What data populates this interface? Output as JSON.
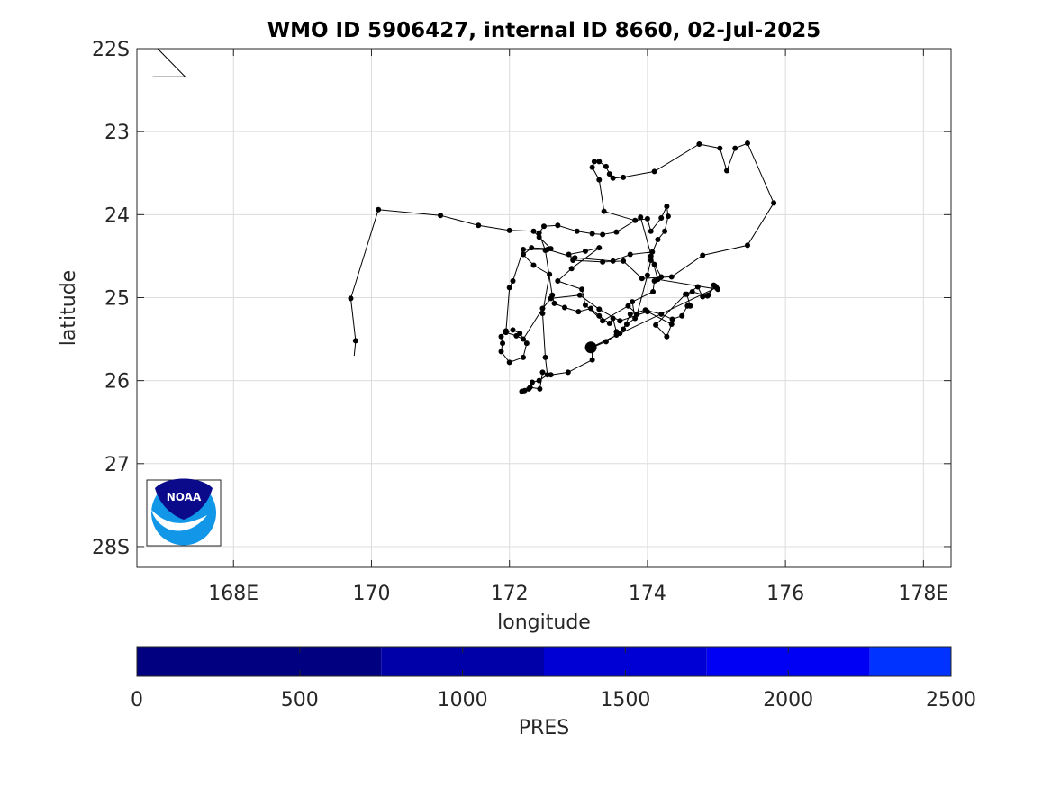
{
  "chart_data": {
    "type": "scatter",
    "title": "WMO ID 5906427, internal ID 8660, 02-Jul-2025",
    "xlabel": "longitude",
    "ylabel": "latitude",
    "xlim": [
      166.6,
      178.4
    ],
    "ylim": [
      22.0,
      28.25
    ],
    "y_axis": "latitude increasing southward (top to bottom)",
    "grid": true,
    "x_ticks": [
      {
        "value": 168,
        "label": "168E"
      },
      {
        "value": 170,
        "label": "170"
      },
      {
        "value": 172,
        "label": "172"
      },
      {
        "value": 174,
        "label": "174"
      },
      {
        "value": 176,
        "label": "176"
      },
      {
        "value": 178,
        "label": "178E"
      }
    ],
    "y_ticks": [
      {
        "value": 22,
        "label": "22S"
      },
      {
        "value": 23,
        "label": "23"
      },
      {
        "value": 24,
        "label": "24"
      },
      {
        "value": 25,
        "label": "25"
      },
      {
        "value": 26,
        "label": "26"
      },
      {
        "value": 27,
        "label": "27"
      },
      {
        "value": 28,
        "label": "28S"
      }
    ],
    "series": [
      {
        "marker": "dot",
        "color": "#000000",
        "points": [
          [
            169.75,
            25.7
          ],
          [
            169.77,
            25.52
          ],
          [
            169.7,
            25.01
          ],
          [
            170.1,
            23.94
          ],
          [
            171.0,
            24.01
          ],
          [
            171.55,
            24.13
          ],
          [
            172.0,
            24.19
          ],
          [
            172.35,
            24.2
          ],
          [
            172.43,
            24.27
          ],
          [
            172.6,
            24.41
          ],
          [
            172.32,
            24.4
          ],
          [
            172.2,
            24.48
          ],
          [
            172.35,
            24.61
          ],
          [
            172.58,
            24.72
          ],
          [
            172.48,
            25.19
          ],
          [
            172.52,
            25.72
          ],
          [
            172.55,
            25.93
          ],
          [
            172.43,
            26.0
          ],
          [
            172.33,
            26.02
          ],
          [
            172.28,
            26.1
          ],
          [
            172.22,
            26.12
          ],
          [
            172.18,
            26.13
          ],
          [
            172.3,
            26.08
          ],
          [
            172.44,
            26.1
          ],
          [
            172.48,
            25.9
          ],
          [
            172.6,
            25.93
          ],
          [
            172.85,
            25.9
          ],
          [
            173.2,
            25.75
          ],
          [
            173.2,
            25.6
          ],
          [
            173.4,
            25.53
          ],
          [
            173.55,
            25.45
          ],
          [
            173.65,
            25.38
          ],
          [
            173.75,
            25.2
          ],
          [
            173.97,
            25.15
          ],
          [
            174.2,
            25.2
          ],
          [
            174.36,
            25.26
          ],
          [
            174.5,
            25.22
          ],
          [
            174.58,
            25.1
          ],
          [
            174.62,
            25.1
          ],
          [
            174.57,
            24.96
          ],
          [
            174.73,
            24.87
          ],
          [
            174.8,
            24.99
          ],
          [
            174.88,
            24.97
          ],
          [
            174.98,
            24.86
          ],
          [
            175.02,
            24.9
          ],
          [
            174.15,
            24.78
          ],
          [
            173.9,
            24.03
          ],
          [
            173.55,
            24.21
          ],
          [
            173.35,
            24.24
          ],
          [
            173.2,
            24.23
          ],
          [
            172.98,
            24.2
          ],
          [
            172.7,
            24.13
          ],
          [
            172.5,
            24.14
          ],
          [
            172.43,
            24.22
          ],
          [
            172.52,
            24.43
          ],
          [
            172.62,
            24.97
          ],
          [
            172.65,
            25.07
          ],
          [
            172.8,
            25.12
          ],
          [
            173.0,
            25.17
          ],
          [
            173.18,
            25.13
          ],
          [
            173.3,
            25.22
          ],
          [
            173.45,
            25.31
          ],
          [
            173.5,
            25.25
          ],
          [
            173.55,
            25.41
          ],
          [
            173.6,
            25.43
          ],
          [
            173.7,
            25.32
          ],
          [
            173.82,
            25.25
          ],
          [
            173.78,
            25.05
          ],
          [
            174.08,
            24.93
          ],
          [
            174.1,
            24.8
          ],
          [
            174.2,
            24.75
          ],
          [
            174.1,
            24.6
          ],
          [
            174.05,
            24.5
          ],
          [
            174.15,
            24.3
          ],
          [
            174.25,
            24.2
          ],
          [
            174.3,
            24.02
          ],
          [
            174.28,
            23.9
          ],
          [
            174.2,
            24.04
          ],
          [
            174.05,
            24.2
          ],
          [
            174.0,
            24.05
          ],
          [
            173.82,
            24.07
          ],
          [
            173.37,
            23.96
          ],
          [
            173.3,
            23.58
          ],
          [
            173.2,
            23.43
          ],
          [
            173.23,
            23.36
          ],
          [
            173.3,
            23.36
          ],
          [
            173.4,
            23.42
          ],
          [
            173.45,
            23.51
          ],
          [
            173.5,
            23.56
          ],
          [
            173.65,
            23.55
          ],
          [
            174.1,
            23.48
          ],
          [
            174.75,
            23.15
          ],
          [
            175.05,
            23.2
          ],
          [
            175.15,
            23.47
          ],
          [
            175.27,
            23.2
          ],
          [
            175.45,
            23.14
          ],
          [
            175.83,
            23.86
          ],
          [
            175.45,
            24.37
          ],
          [
            174.8,
            24.49
          ],
          [
            174.35,
            24.75
          ],
          [
            173.92,
            24.77
          ],
          [
            173.65,
            24.56
          ],
          [
            173.35,
            24.57
          ],
          [
            172.92,
            24.55
          ],
          [
            172.86,
            24.48
          ],
          [
            173.1,
            24.44
          ],
          [
            173.3,
            24.4
          ],
          [
            172.9,
            24.65
          ],
          [
            172.7,
            24.8
          ],
          [
            173.05,
            24.9
          ],
          [
            173.1,
            25.09
          ],
          [
            173.35,
            25.28
          ],
          [
            173.72,
            25.1
          ],
          [
            173.85,
            25.2
          ],
          [
            174.0,
            24.73
          ],
          [
            174.05,
            24.55
          ],
          [
            174.07,
            24.45
          ],
          [
            173.75,
            24.48
          ],
          [
            173.5,
            24.56
          ],
          [
            172.95,
            24.52
          ],
          [
            172.55,
            24.42
          ],
          [
            172.2,
            24.42
          ],
          [
            172.05,
            24.8
          ],
          [
            172.0,
            24.88
          ],
          [
            171.95,
            25.4
          ],
          [
            171.88,
            25.47
          ],
          [
            171.9,
            25.55
          ],
          [
            171.88,
            25.65
          ],
          [
            172.0,
            25.78
          ],
          [
            172.2,
            25.72
          ],
          [
            172.25,
            25.55
          ],
          [
            172.15,
            25.43
          ],
          [
            172.05,
            25.39
          ],
          [
            171.95,
            25.42
          ],
          [
            172.1,
            25.46
          ],
          [
            172.2,
            25.5
          ],
          [
            172.48,
            25.13
          ],
          [
            172.6,
            25.01
          ],
          [
            173.02,
            24.97
          ],
          [
            173.3,
            25.14
          ],
          [
            173.6,
            25.28
          ],
          [
            174.0,
            25.17
          ],
          [
            174.35,
            25.32
          ],
          [
            174.28,
            25.47
          ],
          [
            174.12,
            25.33
          ],
          [
            174.55,
            24.96
          ],
          [
            174.65,
            24.93
          ],
          [
            174.87,
            24.98
          ],
          [
            174.96,
            24.85
          ],
          [
            175.0,
            24.88
          ],
          [
            173.18,
            25.6
          ]
        ]
      }
    ],
    "current_position": {
      "lon": 173.18,
      "lat": 25.6,
      "marker": "large-dot"
    },
    "inset_line": [
      [
        166.9,
        22.0
      ],
      [
        167.3,
        22.34
      ],
      [
        166.83,
        22.34
      ]
    ],
    "colorbar": {
      "label": "PRES",
      "range": [
        0,
        2500
      ],
      "ticks": [
        0,
        500,
        1000,
        1500,
        2000,
        2500
      ],
      "segments": [
        {
          "from": 0,
          "to": 750,
          "color": "#000080"
        },
        {
          "from": 750,
          "to": 1250,
          "color": "#0000a8"
        },
        {
          "from": 1250,
          "to": 1750,
          "color": "#0000d4"
        },
        {
          "from": 1750,
          "to": 2250,
          "color": "#0000f4"
        },
        {
          "from": 2250,
          "to": 2500,
          "color": "#0033ff"
        }
      ]
    },
    "logo": {
      "text": "NOAA",
      "colors": {
        "navy": "#0a0a8a",
        "sky": "#1196e8"
      }
    }
  }
}
